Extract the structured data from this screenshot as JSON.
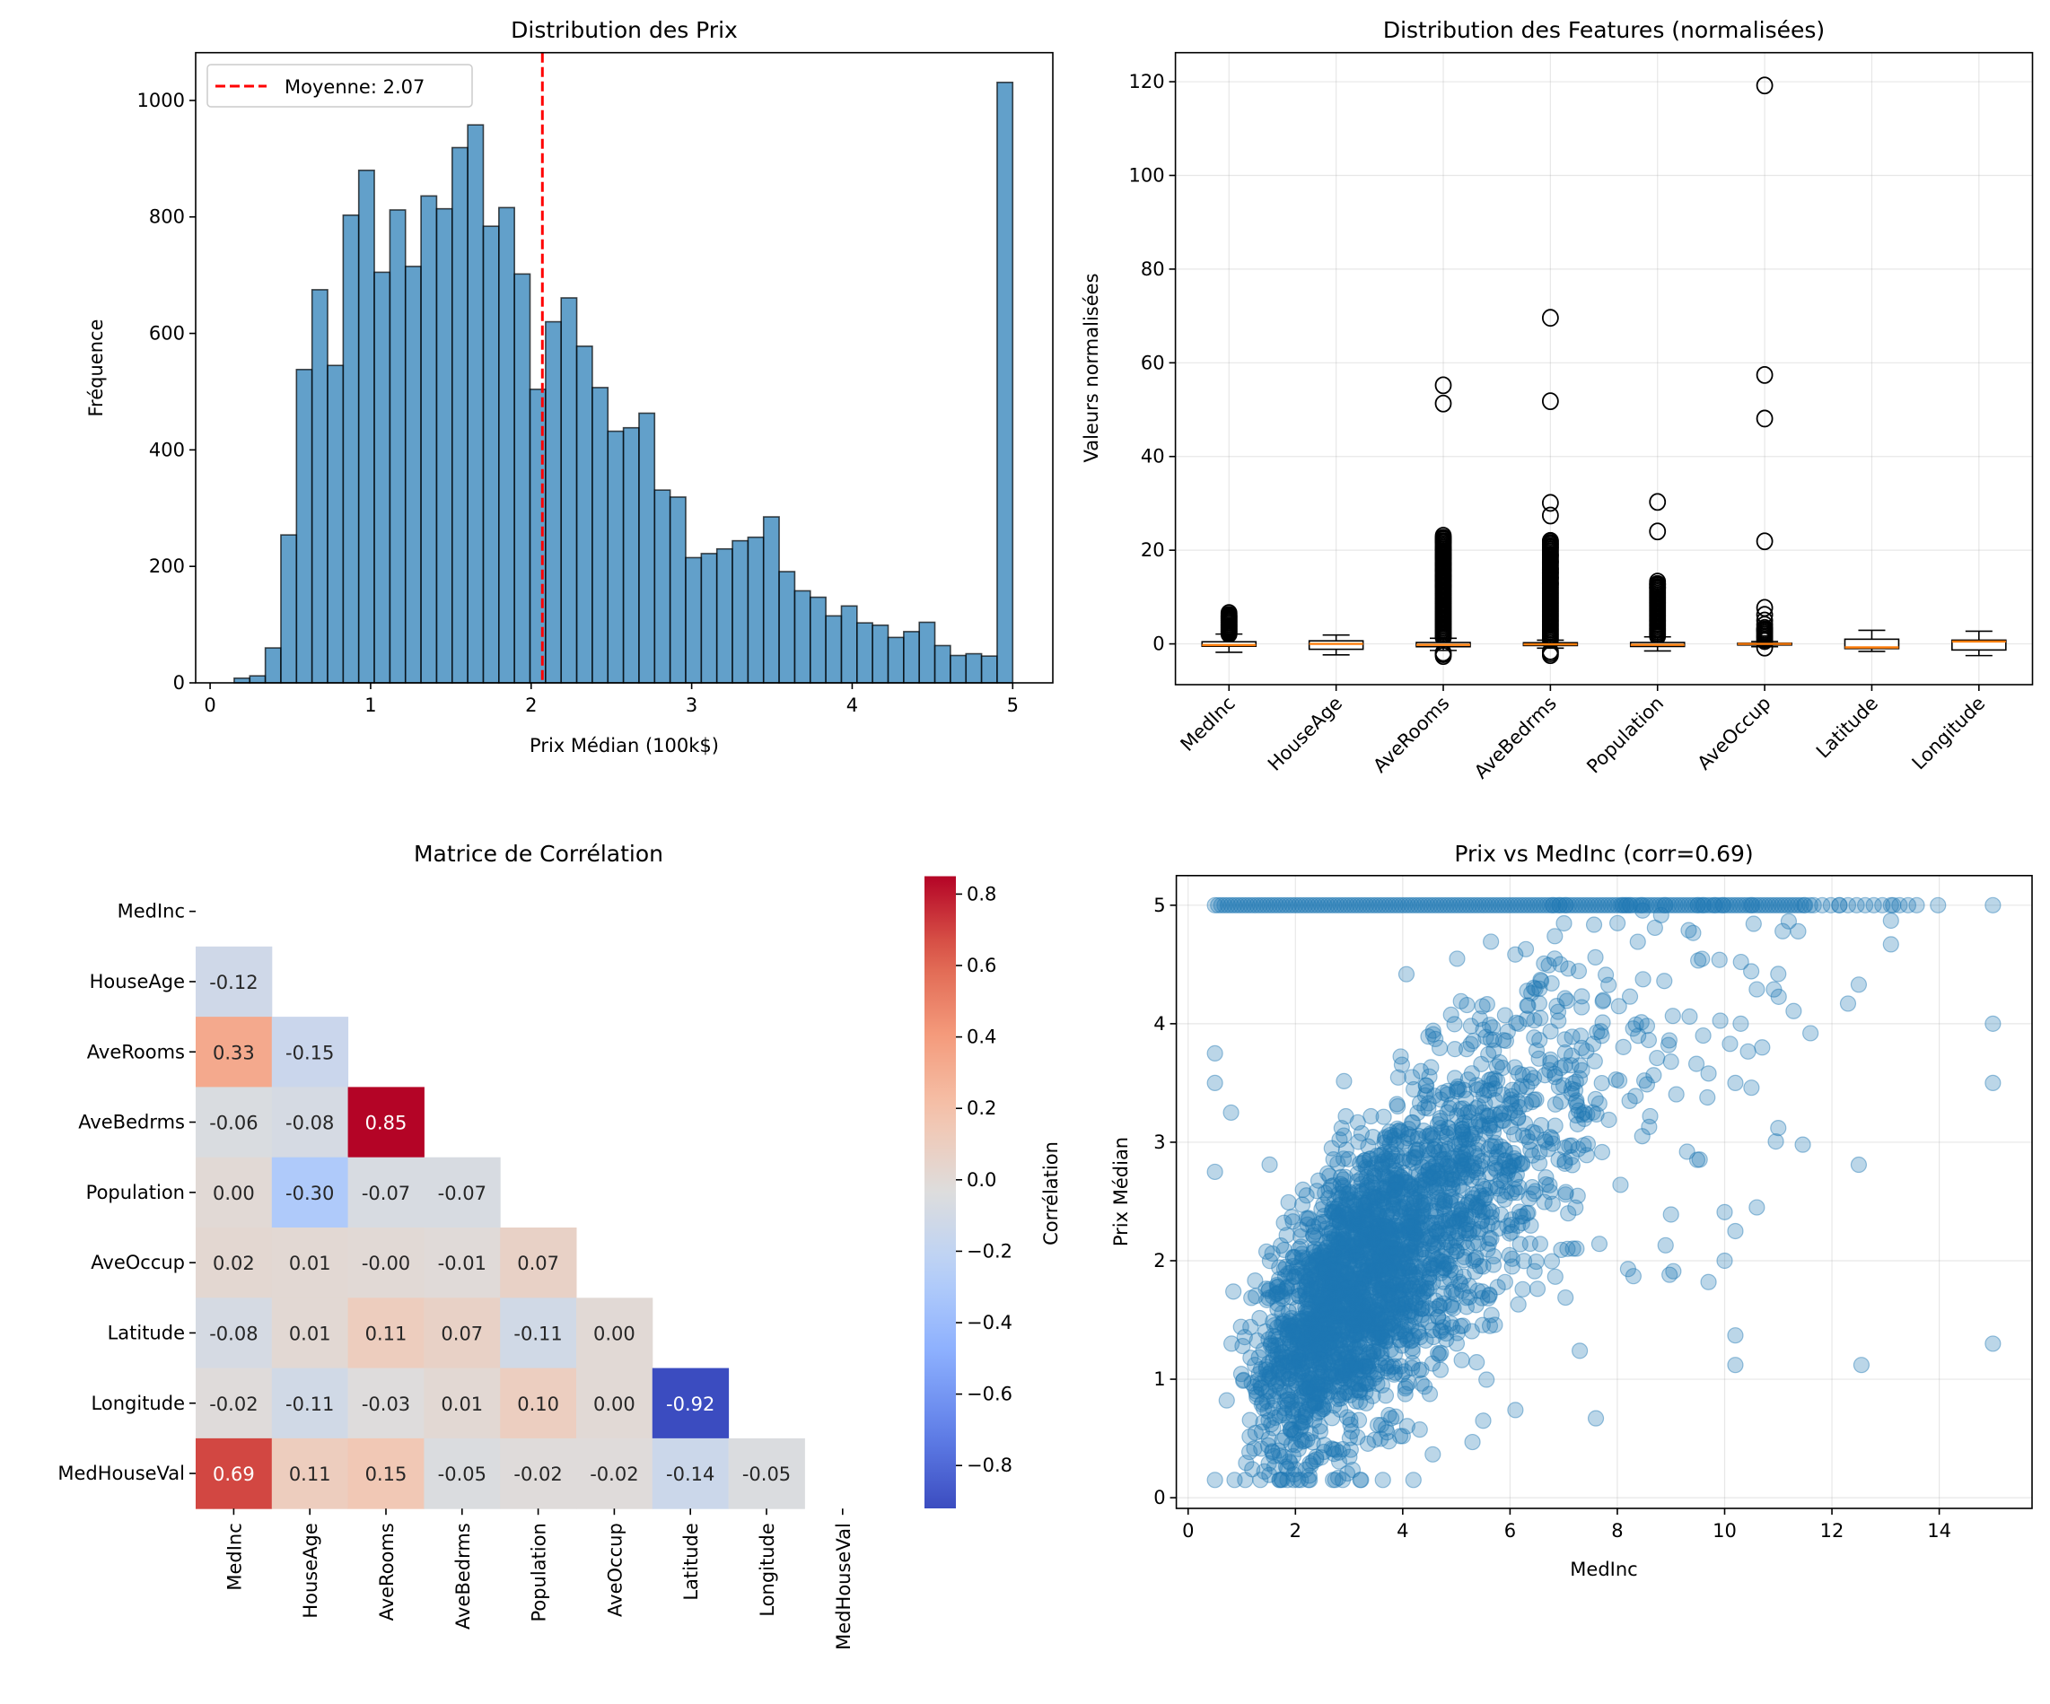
{
  "figure": {
    "background": "#ffffff"
  },
  "chart_data": [
    {
      "id": "hist",
      "type": "bar",
      "subtype": "histogram",
      "title": "Distribution des Prix",
      "xlabel": "Prix Médian (100k$)",
      "ylabel": "Fréquence",
      "xlim": [
        -0.09,
        5.25
      ],
      "ylim": [
        0,
        1082
      ],
      "xticks": [
        0,
        1,
        2,
        3,
        4,
        5
      ],
      "yticks": [
        0,
        200,
        400,
        600,
        800,
        1000
      ],
      "grid": false,
      "bin_start": 0.15,
      "bin_end": 5.0,
      "bins": 50,
      "values": [
        8,
        12,
        60,
        254,
        538,
        675,
        545,
        803,
        880,
        705,
        812,
        715,
        836,
        814,
        919,
        958,
        784,
        816,
        702,
        504,
        620,
        661,
        578,
        507,
        432,
        438,
        463,
        331,
        319,
        215,
        222,
        230,
        244,
        250,
        285,
        191,
        158,
        147,
        115,
        132,
        103,
        99,
        78,
        88,
        104,
        64,
        47,
        50,
        46,
        1031
      ],
      "bar_color": "#1f77b4",
      "bar_alpha": 0.7,
      "edge_color": "#000000",
      "mean_line": {
        "value": 2.07,
        "color": "#ff0000",
        "style": "dashed"
      },
      "legend": {
        "position": "top-left",
        "entries": [
          {
            "label": "Moyenne: 2.07",
            "color": "#ff0000",
            "style": "dashed"
          }
        ]
      }
    },
    {
      "id": "boxplot",
      "type": "boxplot",
      "title": "Distribution des Features (normalisées)",
      "ylabel": "Valeurs normalisées",
      "xlabel": "",
      "categories": [
        "MedInc",
        "HouseAge",
        "AveRooms",
        "AveBedrms",
        "Population",
        "AveOccup",
        "Latitude",
        "Longitude"
      ],
      "ylim": [
        -8.7,
        126.2
      ],
      "yticks": [
        0,
        20,
        40,
        60,
        80,
        100,
        120
      ],
      "grid": true,
      "tick_rotation": 45,
      "median_color": "#ff7f0e",
      "boxes": [
        {
          "q1": -0.5,
          "median": -0.25,
          "q3": 0.45,
          "whislo": -1.8,
          "whishi": 2.1,
          "fliers_range": [
            2.1,
            6.0
          ],
          "fliers": [
            6.6,
            6.2,
            5.8,
            5.4,
            5.0,
            4.6,
            4.2,
            3.8,
            3.4,
            3.0,
            2.6,
            2.2
          ]
        },
        {
          "q1": -1.15,
          "median": 0.0,
          "q3": 0.65,
          "whislo": -2.35,
          "whishi": 1.9,
          "fliers_range": null,
          "fliers": []
        },
        {
          "q1": -0.6,
          "median": -0.2,
          "q3": 0.3,
          "whislo": -1.4,
          "whishi": 1.2,
          "fliers_range": [
            1.3,
            23
          ],
          "fliers": [
            55.2,
            51.3,
            23.1,
            22.5,
            21.8,
            20.2,
            19.1,
            18.3,
            17.0,
            15.8,
            14.5,
            13.6,
            12.4,
            -2.2,
            -2.6,
            -1.9
          ]
        },
        {
          "q1": -0.35,
          "median": -0.1,
          "q3": 0.25,
          "whislo": -0.9,
          "whishi": 0.8,
          "fliers_range": [
            0.9,
            22
          ],
          "fliers": [
            69.6,
            51.8,
            30.1,
            27.4,
            22.0,
            21.3,
            20.6,
            18.9,
            17.5,
            16.0,
            15.2,
            14.1,
            12.8,
            -2.4,
            -2.0,
            -1.6
          ]
        },
        {
          "q1": -0.55,
          "median": -0.2,
          "q3": 0.3,
          "whislo": -1.5,
          "whishi": 1.5,
          "fliers_range": [
            1.6,
            13
          ],
          "fliers": [
            30.3,
            24.0,
            13.3,
            12.7,
            12.0
          ]
        },
        {
          "q1": -0.15,
          "median": 0.0,
          "q3": 0.15,
          "whislo": -0.6,
          "whishi": 0.5,
          "fliers_range": [
            0.6,
            3.5
          ],
          "fliers": [
            119.2,
            57.4,
            48.1,
            21.9,
            7.7,
            6.2,
            5.0,
            4.1,
            3.0,
            -0.8
          ]
        },
        {
          "q1": -1.0,
          "median": -0.75,
          "q3": 1.0,
          "whislo": -1.6,
          "whishi": 2.9,
          "fliers_range": null,
          "fliers": []
        },
        {
          "q1": -1.3,
          "median": 0.5,
          "q3": 0.8,
          "whislo": -2.5,
          "whishi": 2.7,
          "fliers_range": null,
          "fliers": []
        }
      ]
    },
    {
      "id": "heatmap",
      "type": "heatmap",
      "title": "Matrice de Corrélation",
      "labels": [
        "MedInc",
        "HouseAge",
        "AveRooms",
        "AveBedrms",
        "Population",
        "AveOccup",
        "Latitude",
        "Longitude",
        "MedHouseVal"
      ],
      "mask": "upper-triangle-including-diagonal",
      "matrix": [
        [
          null,
          null,
          null,
          null,
          null,
          null,
          null,
          null,
          null
        ],
        [
          -0.12,
          null,
          null,
          null,
          null,
          null,
          null,
          null,
          null
        ],
        [
          0.33,
          -0.15,
          null,
          null,
          null,
          null,
          null,
          null,
          null
        ],
        [
          -0.06,
          -0.08,
          0.85,
          null,
          null,
          null,
          null,
          null,
          null
        ],
        [
          0.0,
          -0.3,
          -0.07,
          -0.07,
          null,
          null,
          null,
          null,
          null
        ],
        [
          0.02,
          0.01,
          -0.0,
          -0.01,
          0.07,
          null,
          null,
          null,
          null
        ],
        [
          -0.08,
          0.01,
          0.11,
          0.07,
          -0.11,
          0.0,
          null,
          null,
          null
        ],
        [
          -0.02,
          -0.11,
          -0.03,
          0.01,
          0.1,
          0.0,
          -0.92,
          null,
          null
        ],
        [
          0.69,
          0.11,
          0.15,
          -0.05,
          -0.02,
          -0.02,
          -0.14,
          -0.05,
          null
        ]
      ],
      "annotations": [
        [
          null,
          null,
          null,
          null,
          null,
          null,
          null,
          null,
          null
        ],
        [
          "-0.12",
          null,
          null,
          null,
          null,
          null,
          null,
          null,
          null
        ],
        [
          "0.33",
          "-0.15",
          null,
          null,
          null,
          null,
          null,
          null,
          null
        ],
        [
          "-0.06",
          "-0.08",
          "0.85",
          null,
          null,
          null,
          null,
          null,
          null
        ],
        [
          "0.00",
          "-0.30",
          "-0.07",
          "-0.07",
          null,
          null,
          null,
          null,
          null
        ],
        [
          "0.02",
          "0.01",
          "-0.00",
          "-0.01",
          "0.07",
          null,
          null,
          null,
          null
        ],
        [
          "-0.08",
          "0.01",
          "0.11",
          "0.07",
          "-0.11",
          "0.00",
          null,
          null,
          null
        ],
        [
          "-0.02",
          "-0.11",
          "-0.03",
          "0.01",
          "0.10",
          "0.00",
          "-0.92",
          null,
          null
        ],
        [
          "0.69",
          "0.11",
          "0.15",
          "-0.05",
          "-0.02",
          "-0.02",
          "-0.14",
          "-0.05",
          null
        ]
      ],
      "colormap": "coolwarm",
      "vmin": -0.92,
      "vmax": 0.85,
      "colorbar": {
        "label": "Corrélation",
        "ticks": [
          0.8,
          0.6,
          0.4,
          0.2,
          0.0,
          -0.2,
          -0.4,
          -0.6,
          -0.8
        ],
        "tick_labels": [
          "0.8",
          "0.6",
          "0.4",
          "0.2",
          "0.0",
          "−0.2",
          "−0.4",
          "−0.6",
          "−0.8"
        ]
      }
    },
    {
      "id": "scatter",
      "type": "scatter",
      "title": "Prix vs MedInc (corr=0.69)",
      "xlabel": "MedInc",
      "ylabel": "Prix Médian",
      "xlim": [
        -0.22,
        15.73
      ],
      "ylim": [
        -0.09,
        5.25
      ],
      "xticks": [
        0,
        2,
        4,
        6,
        8,
        10,
        12,
        14
      ],
      "yticks": [
        0,
        1,
        2,
        3,
        4,
        5
      ],
      "grid": true,
      "point_color": "#1f77b4",
      "point_alpha": 0.3,
      "correlation": 0.69,
      "cloud": {
        "n_points": 2600,
        "x_range": [
          0.5,
          15.0
        ],
        "y_cap": 5.0,
        "slope": 0.42,
        "intercept": 0.45,
        "noise": 0.72
      },
      "capped_row": {
        "y": 5.0,
        "x_from": 0.5,
        "x_to": 15.0
      },
      "outliers": [
        [
          15.0,
          4.0
        ],
        [
          15.0,
          3.5
        ],
        [
          15.0,
          1.3
        ],
        [
          15.0,
          5.0
        ],
        [
          13.1,
          4.87
        ],
        [
          13.1,
          4.67
        ],
        [
          12.5,
          4.33
        ],
        [
          12.3,
          4.17
        ],
        [
          11.6,
          3.92
        ],
        [
          12.5,
          2.81
        ],
        [
          12.55,
          1.12
        ],
        [
          10.2,
          1.37
        ],
        [
          10.2,
          1.12
        ],
        [
          11.0,
          4.42
        ],
        [
          11.0,
          3.12
        ],
        [
          10.6,
          2.45
        ],
        [
          10.0,
          2.41
        ],
        [
          10.2,
          2.25
        ],
        [
          10.0,
          2.0
        ],
        [
          9.7,
          1.82
        ],
        [
          9.3,
          2.92
        ],
        [
          9.0,
          2.39
        ],
        [
          8.9,
          2.13
        ],
        [
          10.5,
          3.46
        ],
        [
          10.2,
          3.5
        ],
        [
          9.7,
          3.58
        ],
        [
          10.6,
          4.29
        ],
        [
          10.3,
          4.0
        ],
        [
          10.1,
          3.83
        ],
        [
          10.7,
          3.8
        ],
        [
          9.6,
          3.9
        ],
        [
          9.0,
          3.68
        ],
        [
          7.6,
          0.67
        ],
        [
          5.3,
          0.47
        ],
        [
          4.2,
          0.15
        ],
        [
          4.0,
          0.52
        ],
        [
          5.5,
          0.65
        ],
        [
          6.1,
          0.74
        ],
        [
          0.5,
          0.15
        ],
        [
          0.5,
          3.75
        ],
        [
          0.5,
          3.5
        ],
        [
          0.5,
          2.75
        ],
        [
          0.8,
          3.25
        ],
        [
          1.7,
          0.15
        ],
        [
          2.1,
          0.15
        ],
        [
          8.3,
          1.87
        ],
        [
          8.2,
          1.93
        ],
        [
          7.3,
          1.24
        ]
      ]
    }
  ]
}
